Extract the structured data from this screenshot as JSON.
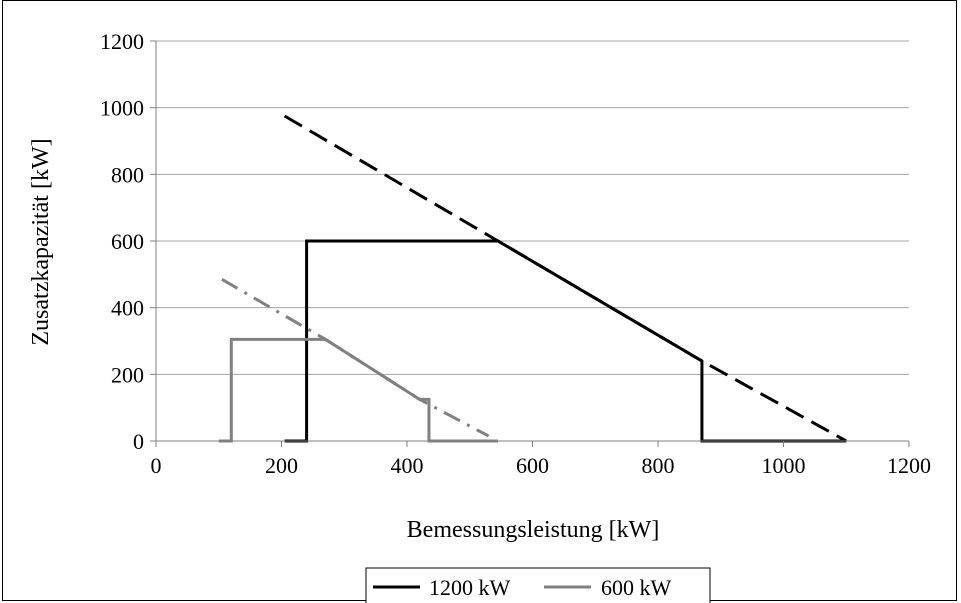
{
  "chart_data": {
    "type": "line",
    "xlabel": "Bemessungsleistung [kW]",
    "ylabel": "Zusatzkapazität [kW]",
    "xlim": [
      0,
      1200
    ],
    "ylim": [
      0,
      1200
    ],
    "xticks": [
      0,
      200,
      400,
      600,
      800,
      1000,
      1200
    ],
    "yticks": [
      0,
      200,
      400,
      600,
      800,
      1000,
      1200
    ],
    "grid": "horizontal",
    "legend_position": "bottom",
    "legend": [
      "1200 kW",
      "600 kW"
    ],
    "series": [
      {
        "name": "1200 kW",
        "color": "#000000",
        "style": "solid",
        "x": [
          205,
          240,
          240,
          545,
          870,
          870,
          1100
        ],
        "y": [
          0,
          0,
          600,
          600,
          240,
          0,
          0
        ]
      },
      {
        "name": "1200 kW",
        "color": "#000000",
        "style": "dashed",
        "x": [
          205,
          545,
          870,
          1100
        ],
        "y": [
          975,
          600,
          240,
          0
        ]
      },
      {
        "name": "600 kW",
        "color": "#808080",
        "style": "solid",
        "x": [
          100,
          120,
          120,
          270,
          420,
          435,
          435,
          545
        ],
        "y": [
          0,
          0,
          305,
          305,
          125,
          125,
          0,
          0
        ]
      },
      {
        "name": "600 kW",
        "color": "#808080",
        "style": "dashdot",
        "x": [
          105,
          270,
          420,
          530
        ],
        "y": [
          485,
          305,
          125,
          15
        ]
      }
    ]
  }
}
